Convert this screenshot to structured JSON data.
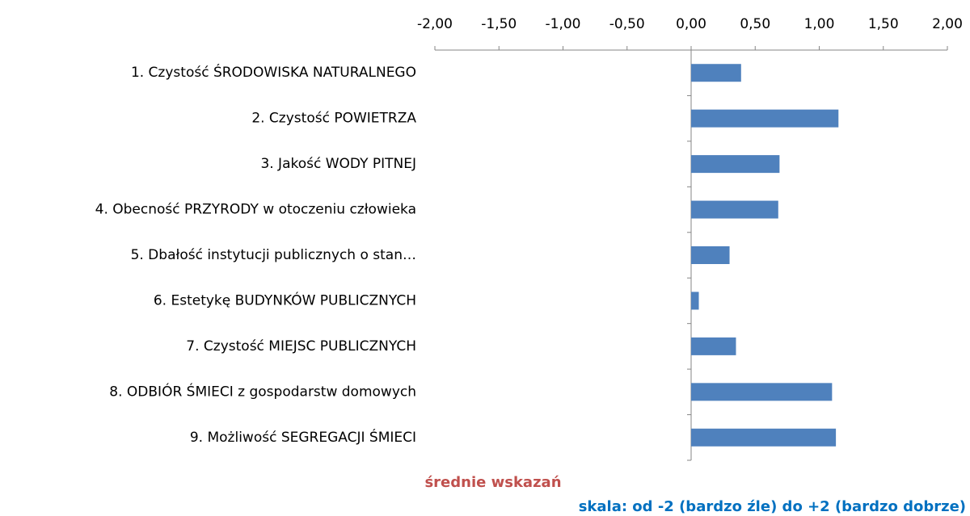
{
  "chart_data": {
    "type": "bar",
    "orientation": "horizontal",
    "categories": [
      "1. Czystość ŚRODOWISKA NATURALNEGO",
      "2. Czystość POWIETRZA",
      "3. Jakość WODY PITNEJ",
      "4. Obecność PRZYRODY w otoczeniu człowieka",
      "5. Dbałość instytucji publicznych o stan…",
      "6. Estetykę BUDYNKÓW PUBLICZNYCH",
      "7. Czystość MIEJSC PUBLICZNYCH",
      "8. ODBIÓR ŚMIECI z gospodarstw domowych",
      "9. Możliwość SEGREGACJI ŚMIECI"
    ],
    "values": [
      0.39,
      1.15,
      0.69,
      0.68,
      0.3,
      0.06,
      0.35,
      1.1,
      1.13
    ],
    "color": "#4f81bd",
    "xlim": [
      -2,
      2
    ],
    "xticks": [
      {
        "value": -2,
        "label": "-2,00"
      },
      {
        "value": -1.5,
        "label": "-1,50"
      },
      {
        "value": -1,
        "label": "-1,00"
      },
      {
        "value": -0.5,
        "label": "-0,50"
      },
      {
        "value": 0,
        "label": "0,00"
      },
      {
        "value": 0.5,
        "label": "0,50"
      },
      {
        "value": 1,
        "label": "1,00"
      },
      {
        "value": 1.5,
        "label": "1,50"
      },
      {
        "value": 2,
        "label": "2,00"
      }
    ],
    "annotations": [
      "średnie wskazań",
      "skala: od -2 (bardzo źle) do +2 (bardzo dobrze)"
    ]
  }
}
